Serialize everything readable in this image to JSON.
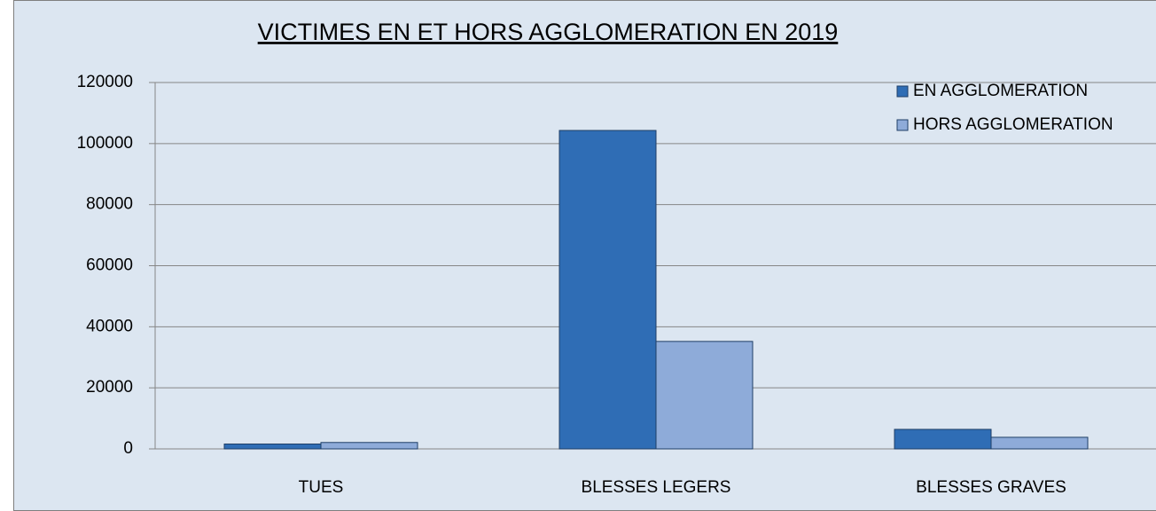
{
  "chart_data": {
    "type": "bar",
    "title": "VICTIMES EN ET HORS AGGLOMERATION EN 2019",
    "categories": [
      "TUES",
      "BLESSES LEGERS",
      "BLESSES GRAVES"
    ],
    "series": [
      {
        "name": "EN AGGLOMERATION",
        "color": "#2f6db5",
        "values": [
          1600,
          104300,
          6400
        ]
      },
      {
        "name": "HORS AGGLOMERATION",
        "color": "#8eabd9",
        "values": [
          2100,
          35200,
          3800
        ]
      }
    ],
    "ylim": [
      0,
      120000
    ],
    "yticks": [
      0,
      20000,
      40000,
      60000,
      80000,
      100000,
      120000
    ],
    "grid": true,
    "legend": "top-right"
  }
}
